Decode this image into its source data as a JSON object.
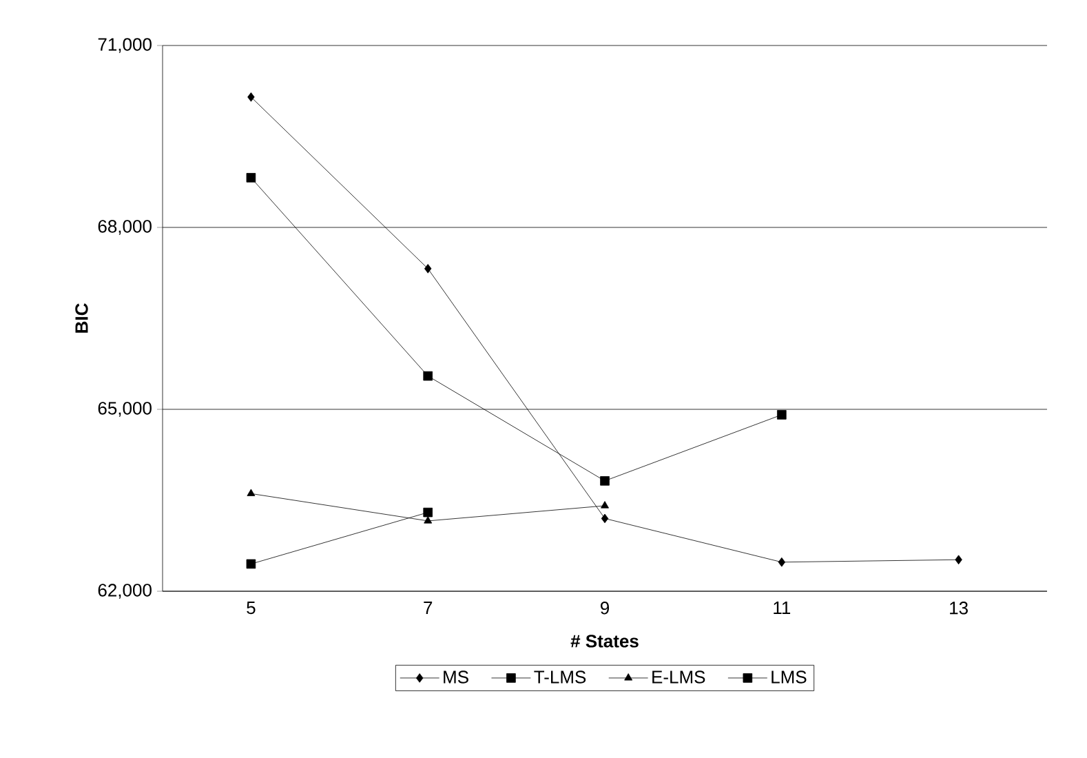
{
  "chart_data": {
    "type": "line",
    "xlabel": "# States",
    "ylabel": "BIC",
    "categories": [
      "5",
      "7",
      "9",
      "11",
      "13"
    ],
    "ylim": [
      62000,
      71000
    ],
    "yticks": [
      {
        "value": 62000,
        "label": "62,000"
      },
      {
        "value": 65000,
        "label": "65,000"
      },
      {
        "value": 68000,
        "label": "68,000"
      },
      {
        "value": 71000,
        "label": "71,000"
      }
    ],
    "grid": "y",
    "legend": "bottom",
    "line_style": "solid",
    "series": [
      {
        "name": "MS",
        "color": "#000000",
        "marker": "diamond",
        "values": [
          70150,
          67320,
          63200,
          62480,
          62520
        ]
      },
      {
        "name": "T-LMS",
        "color": "#000000",
        "marker": "square",
        "values": [
          68820,
          65550,
          63820,
          64910,
          null
        ]
      },
      {
        "name": "E-LMS",
        "color": "#000000",
        "marker": "triangle",
        "values": [
          63610,
          63160,
          63410,
          null,
          null
        ]
      },
      {
        "name": "LMS",
        "color": "#000000",
        "marker": "square",
        "values": [
          62450,
          63300,
          null,
          null,
          null
        ]
      }
    ]
  }
}
